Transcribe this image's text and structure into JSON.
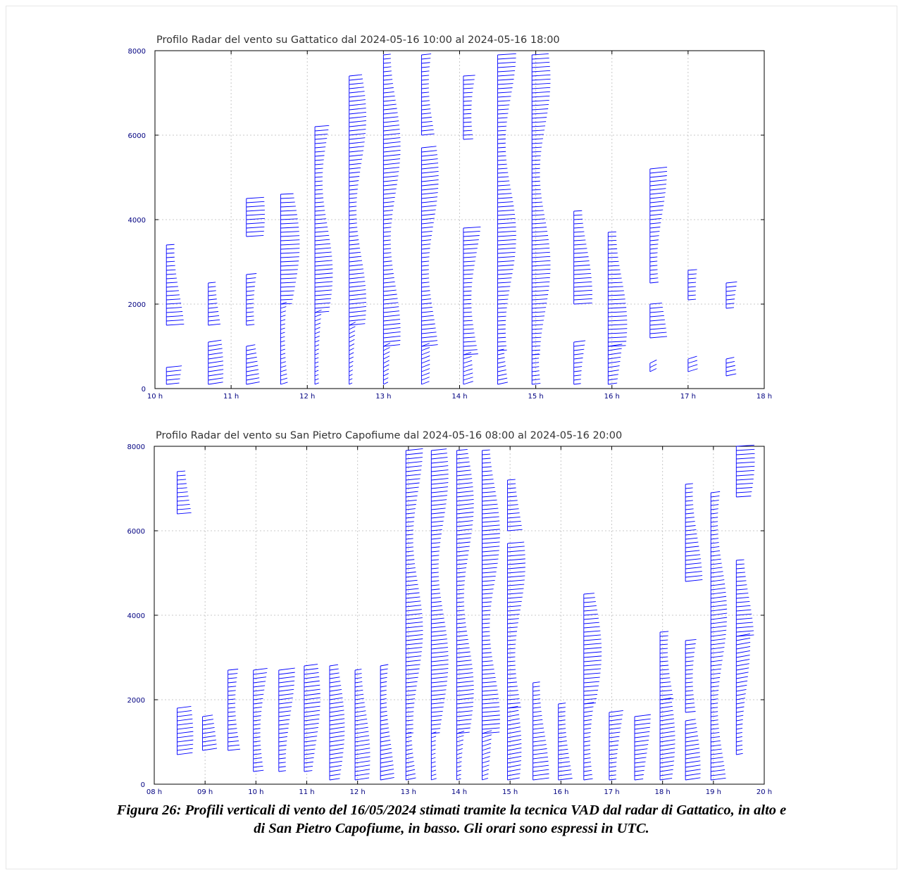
{
  "colors": {
    "barb": "#0000ff",
    "axis": "#000000",
    "grid": "#c8c8c8",
    "ticks": "#000080"
  },
  "caption": {
    "line1": "Figura 26: Profili verticali di vento del 16/05/2024 stimati tramite la tecnica VAD dal radar di Gattatico, in alto e",
    "line2": "di San Pietro Capofiume, in basso. Gli orari sono espressi in UTC."
  },
  "chart_data": [
    {
      "type": "wind-barb profile",
      "title": "Profilo Radar del vento su Gattatico dal 2024-05-16 10:00 al 2024-05-16 18:00",
      "xlabel": "",
      "ylabel": "",
      "xlim": [
        10,
        18
      ],
      "ylim": [
        0,
        8000
      ],
      "x_ticks": [
        "10 h",
        "11 h",
        "12 h",
        "13 h",
        "14 h",
        "15 h",
        "16 h",
        "17 h",
        "18 h"
      ],
      "y_ticks": [
        "0",
        "2000",
        "4000",
        "6000",
        "8000"
      ],
      "grid": true,
      "profiles": [
        {
          "t": 10.15,
          "segments": [
            [
              100,
              500,
              210
            ],
            [
              1500,
              3400,
              200
            ]
          ]
        },
        {
          "t": 10.7,
          "segments": [
            [
              100,
              1100,
              220
            ],
            [
              1500,
              2500,
              210
            ]
          ]
        },
        {
          "t": 11.2,
          "segments": [
            [
              100,
              1000,
              225
            ],
            [
              1500,
              2700,
              210
            ],
            [
              3600,
              4500,
              200
            ]
          ]
        },
        {
          "t": 11.65,
          "segments": [
            [
              100,
              2000,
              240
            ],
            [
              2000,
              4600,
              195
            ]
          ]
        },
        {
          "t": 12.1,
          "segments": [
            [
              100,
              1800,
              245
            ],
            [
              1800,
              6200,
              205
            ]
          ]
        },
        {
          "t": 12.55,
          "segments": [
            [
              100,
              1500,
              250
            ],
            [
              1500,
              7400,
              210
            ]
          ]
        },
        {
          "t": 13.0,
          "segments": [
            [
              100,
              1000,
              250
            ],
            [
              1000,
              7900,
              210
            ]
          ]
        },
        {
          "t": 13.5,
          "segments": [
            [
              100,
              1000,
              245
            ],
            [
              1000,
              5700,
              210
            ],
            [
              6000,
              7900,
              210
            ]
          ]
        },
        {
          "t": 14.05,
          "segments": [
            [
              100,
              800,
              240
            ],
            [
              800,
              3800,
              200
            ],
            [
              5900,
              7400,
              200
            ]
          ]
        },
        {
          "t": 14.5,
          "segments": [
            [
              100,
              900,
              230
            ],
            [
              900,
              7900,
              200
            ]
          ]
        },
        {
          "t": 14.95,
          "segments": [
            [
              100,
              800,
              215
            ],
            [
              800,
              7900,
              200
            ]
          ]
        },
        {
          "t": 15.5,
          "segments": [
            [
              100,
              1100,
              215
            ],
            [
              2000,
              4200,
              200
            ]
          ]
        },
        {
          "t": 15.95,
          "segments": [
            [
              100,
              1000,
              220
            ],
            [
              1000,
              3700,
              195
            ]
          ]
        },
        {
          "t": 16.5,
          "segments": [
            [
              400,
              600,
              250
            ],
            [
              1200,
              2000,
              205
            ],
            [
              2500,
              5200,
              210
            ]
          ]
        },
        {
          "t": 17.0,
          "segments": [
            [
              400,
              700,
              240
            ],
            [
              2100,
              2800,
              205
            ]
          ]
        },
        {
          "t": 17.5,
          "segments": [
            [
              300,
              700,
              230
            ],
            [
              1900,
              2500,
              210
            ]
          ]
        }
      ]
    },
    {
      "type": "wind-barb profile",
      "title": "Profilo Radar del vento su San Pietro Capofiume dal 2024-05-16 08:00 al 2024-05-16 20:00",
      "xlabel": "",
      "ylabel": "",
      "xlim": [
        8,
        20
      ],
      "ylim": [
        0,
        8000
      ],
      "x_ticks": [
        "08 h",
        "09 h",
        "10 h",
        "11 h",
        "12 h",
        "13 h",
        "14 h",
        "15 h",
        "16 h",
        "17 h",
        "18 h",
        "19 h",
        "20 h"
      ],
      "y_ticks": [
        "0",
        "2000",
        "4000",
        "6000",
        "8000"
      ],
      "grid": true,
      "profiles": [
        {
          "t": 8.45,
          "segments": [
            [
              700,
              1800,
              215
            ],
            [
              6400,
              7400,
              205
            ]
          ]
        },
        {
          "t": 8.95,
          "segments": [
            [
              800,
              1600,
              220
            ]
          ]
        },
        {
          "t": 9.45,
          "segments": [
            [
              800,
              2700,
              210
            ]
          ]
        },
        {
          "t": 9.95,
          "segments": [
            [
              300,
              2700,
              215
            ]
          ]
        },
        {
          "t": 10.45,
          "segments": [
            [
              300,
              2700,
              215
            ]
          ]
        },
        {
          "t": 10.95,
          "segments": [
            [
              300,
              2800,
              215
            ]
          ]
        },
        {
          "t": 11.45,
          "segments": [
            [
              100,
              2800,
              220
            ]
          ]
        },
        {
          "t": 11.95,
          "segments": [
            [
              100,
              2700,
              220
            ]
          ]
        },
        {
          "t": 12.45,
          "segments": [
            [
              100,
              2800,
              225
            ]
          ]
        },
        {
          "t": 12.95,
          "segments": [
            [
              100,
              1200,
              230
            ],
            [
              1200,
              7900,
              210
            ]
          ]
        },
        {
          "t": 13.45,
          "segments": [
            [
              100,
              1200,
              240
            ],
            [
              1200,
              7900,
              210
            ]
          ]
        },
        {
          "t": 13.95,
          "segments": [
            [
              100,
              1200,
              240
            ],
            [
              1200,
              7900,
              210
            ]
          ]
        },
        {
          "t": 14.45,
          "segments": [
            [
              100,
              1200,
              240
            ],
            [
              1200,
              7900,
              205
            ]
          ]
        },
        {
          "t": 14.95,
          "segments": [
            [
              100,
              1800,
              225
            ],
            [
              1800,
              5700,
              205
            ],
            [
              6000,
              7200,
              205
            ]
          ]
        },
        {
          "t": 15.45,
          "segments": [
            [
              100,
              2400,
              215
            ]
          ]
        },
        {
          "t": 15.95,
          "segments": [
            [
              100,
              1900,
              215
            ]
          ]
        },
        {
          "t": 16.45,
          "segments": [
            [
              100,
              1900,
              220
            ],
            [
              1900,
              4500,
              205
            ]
          ]
        },
        {
          "t": 16.95,
          "segments": [
            [
              100,
              1700,
              215
            ]
          ]
        },
        {
          "t": 17.45,
          "segments": [
            [
              100,
              1600,
              215
            ]
          ]
        },
        {
          "t": 17.95,
          "segments": [
            [
              100,
              2000,
              220
            ],
            [
              2000,
              3600,
              205
            ]
          ]
        },
        {
          "t": 18.45,
          "segments": [
            [
              100,
              1500,
              220
            ],
            [
              1700,
              3400,
              210
            ],
            [
              4800,
              7100,
              210
            ]
          ]
        },
        {
          "t": 18.95,
          "segments": [
            [
              100,
              6900,
              215
            ]
          ]
        },
        {
          "t": 19.45,
          "segments": [
            [
              700,
              3500,
              225
            ],
            [
              3500,
              5300,
              205
            ],
            [
              6800,
              8000,
              200
            ]
          ]
        }
      ]
    }
  ]
}
